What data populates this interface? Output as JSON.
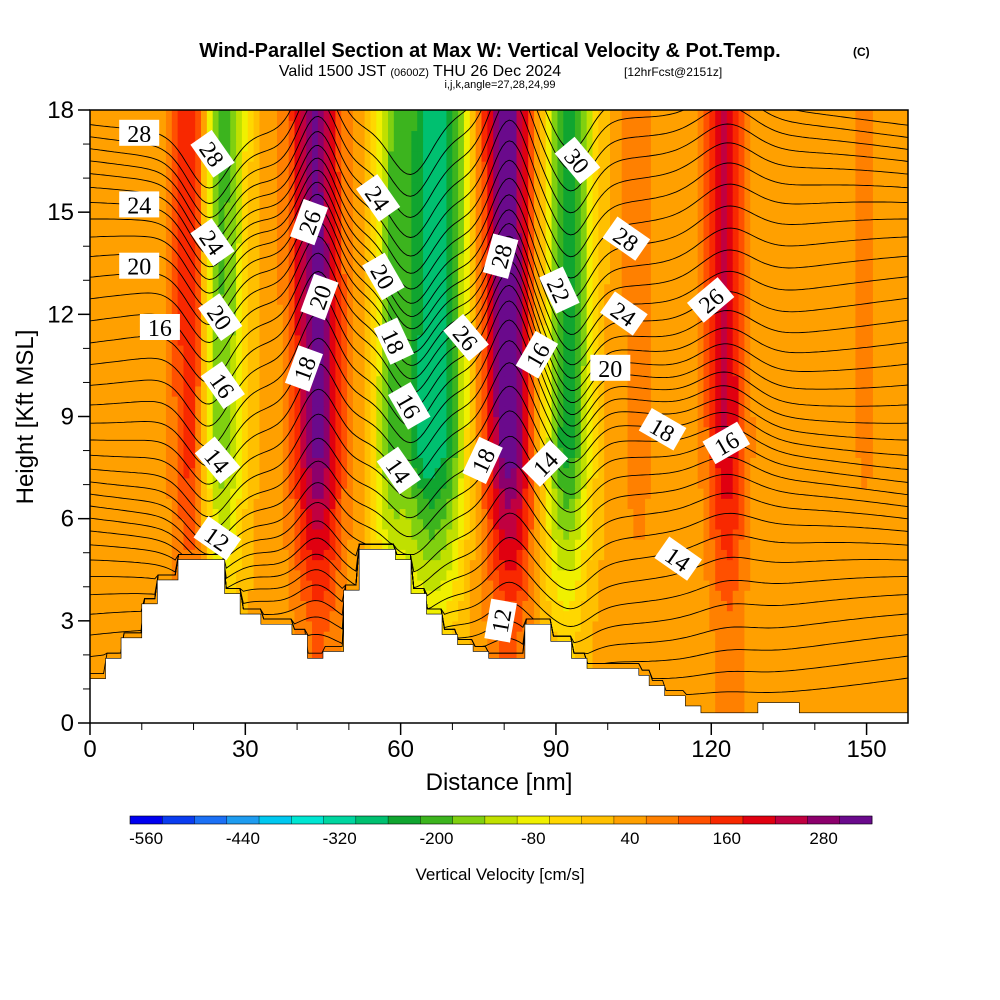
{
  "header": {
    "title": "Wind-Parallel Section at Max W: Vertical Velocity & Pot.Temp.",
    "title_mark": "(C)",
    "valid_prefix": "Valid 1500 JST",
    "valid_utc": "(0600Z)",
    "valid_date": "THU 26 Dec 2024",
    "forecast": "[12hrFcst@2151z]",
    "ijk": "i,j,k,angle=27,28,24,99"
  },
  "chart_data": {
    "type": "heatmap",
    "title": "Wind-Parallel Section at Max W: Vertical Velocity & Pot.Temp.",
    "xlabel": "Distance [nm]",
    "ylabel": "Height [Kft MSL]",
    "xlim": [
      0,
      158
    ],
    "ylim": [
      0,
      18
    ],
    "x_ticks": [
      "0",
      "30",
      "60",
      "90",
      "120",
      "150"
    ],
    "y_ticks": [
      "0",
      "3",
      "6",
      "9",
      "12",
      "15",
      "18"
    ],
    "colorbar": {
      "label": "Vertical Velocity [cm/s]",
      "tick_labels": [
        "-560",
        "-440",
        "-320",
        "-200",
        "-80",
        "40",
        "160",
        "280"
      ],
      "colors": [
        "#0000f0",
        "#0a3cf0",
        "#1b70f5",
        "#1e9cf0",
        "#00c8f0",
        "#00e6d2",
        "#00d6a0",
        "#00c070",
        "#10a530",
        "#3cb41e",
        "#80d010",
        "#c0e000",
        "#f0f000",
        "#ffd700",
        "#ffc000",
        "#ffa000",
        "#ff8000",
        "#ff5000",
        "#f82800",
        "#e00010",
        "#c00040",
        "#8c006c",
        "#6a0a8c"
      ]
    },
    "velocity_columns": [
      {
        "x": 20,
        "w": 170
      },
      {
        "x": 25,
        "w": -230
      },
      {
        "x": 44,
        "w": 280
      },
      {
        "x": 58,
        "w": -200
      },
      {
        "x": 65,
        "w": -300
      },
      {
        "x": 70,
        "w": -150
      },
      {
        "x": 81,
        "w": 300
      },
      {
        "x": 92,
        "w": -280
      },
      {
        "x": 106,
        "w": 40
      },
      {
        "x": 123,
        "w": 190
      },
      {
        "x": 150,
        "w": 30
      }
    ],
    "terrain": [
      [
        0,
        1.3
      ],
      [
        3,
        1.9
      ],
      [
        6,
        2.5
      ],
      [
        10,
        3.5
      ],
      [
        13,
        4.2
      ],
      [
        17,
        4.8
      ],
      [
        26,
        3.8
      ],
      [
        29,
        3.2
      ],
      [
        33,
        2.9
      ],
      [
        39,
        2.6
      ],
      [
        42,
        1.9
      ],
      [
        45,
        2.1
      ],
      [
        49,
        3.9
      ],
      [
        52,
        5.1
      ],
      [
        59,
        4.8
      ],
      [
        62,
        3.8
      ],
      [
        65,
        3.2
      ],
      [
        68,
        2.6
      ],
      [
        71,
        2.3
      ],
      [
        74,
        2.1
      ],
      [
        77,
        1.9
      ],
      [
        84,
        2.9
      ],
      [
        89,
        2.4
      ],
      [
        93,
        1.9
      ],
      [
        96,
        1.6
      ],
      [
        106,
        1.4
      ],
      [
        108,
        1.1
      ],
      [
        111,
        0.8
      ],
      [
        115,
        0.5
      ],
      [
        118,
        0.3
      ],
      [
        129,
        0.6
      ],
      [
        137,
        0.3
      ],
      [
        158,
        0.3
      ]
    ],
    "theta_labels": [
      {
        "text": "28",
        "x": 9.5,
        "y": 17.3,
        "rot": 0
      },
      {
        "text": "24",
        "x": 9.5,
        "y": 15.2,
        "rot": 0
      },
      {
        "text": "20",
        "x": 9.5,
        "y": 13.4,
        "rot": 0
      },
      {
        "text": "16",
        "x": 13.5,
        "y": 11.6,
        "rot": 0
      },
      {
        "text": "28",
        "x": 23.5,
        "y": 16.7,
        "rot": 55
      },
      {
        "text": "24",
        "x": 23.5,
        "y": 14.1,
        "rot": 55
      },
      {
        "text": "20",
        "x": 25,
        "y": 11.9,
        "rot": 55
      },
      {
        "text": "16",
        "x": 25.5,
        "y": 9.9,
        "rot": 55
      },
      {
        "text": "14",
        "x": 24.5,
        "y": 7.7,
        "rot": 50
      },
      {
        "text": "12",
        "x": 24.5,
        "y": 5.4,
        "rot": 35
      },
      {
        "text": "26",
        "x": 42.5,
        "y": 14.7,
        "rot": -70
      },
      {
        "text": "20",
        "x": 44.5,
        "y": 12.5,
        "rot": -70
      },
      {
        "text": "18",
        "x": 41.5,
        "y": 10.4,
        "rot": -70
      },
      {
        "text": "24",
        "x": 55.5,
        "y": 15.4,
        "rot": 55
      },
      {
        "text": "20",
        "x": 56.5,
        "y": 13.1,
        "rot": 60
      },
      {
        "text": "18",
        "x": 58.5,
        "y": 11.2,
        "rot": 65
      },
      {
        "text": "16",
        "x": 61.5,
        "y": 9.3,
        "rot": 60
      },
      {
        "text": "14",
        "x": 59.5,
        "y": 7.4,
        "rot": 55
      },
      {
        "text": "26",
        "x": 72.5,
        "y": 11.3,
        "rot": 50
      },
      {
        "text": "18",
        "x": 76,
        "y": 7.7,
        "rot": -65
      },
      {
        "text": "28",
        "x": 79.5,
        "y": 13.7,
        "rot": -75
      },
      {
        "text": "16",
        "x": 86.5,
        "y": 10.8,
        "rot": -60
      },
      {
        "text": "14",
        "x": 88,
        "y": 7.6,
        "rot": -45
      },
      {
        "text": "12",
        "x": 79.5,
        "y": 3.0,
        "rot": -80
      },
      {
        "text": "30",
        "x": 94,
        "y": 16.5,
        "rot": 50
      },
      {
        "text": "22",
        "x": 90.5,
        "y": 12.7,
        "rot": 65
      },
      {
        "text": "28",
        "x": 103.5,
        "y": 14.2,
        "rot": 35
      },
      {
        "text": "24",
        "x": 103,
        "y": 12.0,
        "rot": 35
      },
      {
        "text": "20",
        "x": 100.5,
        "y": 10.4,
        "rot": 0
      },
      {
        "text": "18",
        "x": 110.5,
        "y": 8.6,
        "rot": 30
      },
      {
        "text": "16",
        "x": 123,
        "y": 8.2,
        "rot": -30
      },
      {
        "text": "14",
        "x": 113.5,
        "y": 4.8,
        "rot": 35
      },
      {
        "text": "26",
        "x": 120,
        "y": 12.4,
        "rot": -40
      }
    ]
  }
}
